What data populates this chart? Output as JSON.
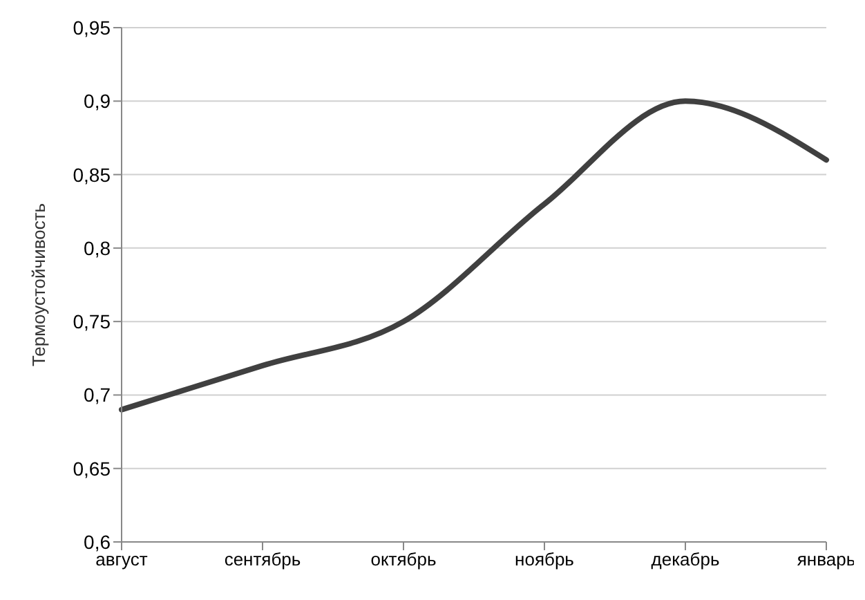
{
  "chart_data": {
    "type": "line",
    "ylabel": "Термоустойчивость",
    "categories": [
      "август",
      "сентябрь",
      "октябрь",
      "ноябрь",
      "декабрь",
      "январь"
    ],
    "series": [
      {
        "color": "#404040",
        "values": [
          0.69,
          0.72,
          0.75,
          0.83,
          0.9,
          0.86
        ]
      }
    ],
    "ylim": [
      0.6,
      0.95
    ],
    "yticks": [
      {
        "value": 0.6,
        "label": "0,6"
      },
      {
        "value": 0.65,
        "label": "0,65"
      },
      {
        "value": 0.7,
        "label": "0,7"
      },
      {
        "value": 0.75,
        "label": "0,75"
      },
      {
        "value": 0.8,
        "label": "0,8"
      },
      {
        "value": 0.85,
        "label": "0,85"
      },
      {
        "value": 0.9,
        "label": "0,9"
      },
      {
        "value": 0.95,
        "label": "0,95"
      }
    ],
    "grid": "y",
    "legend": false,
    "marker": "none",
    "line_style": "solid"
  }
}
